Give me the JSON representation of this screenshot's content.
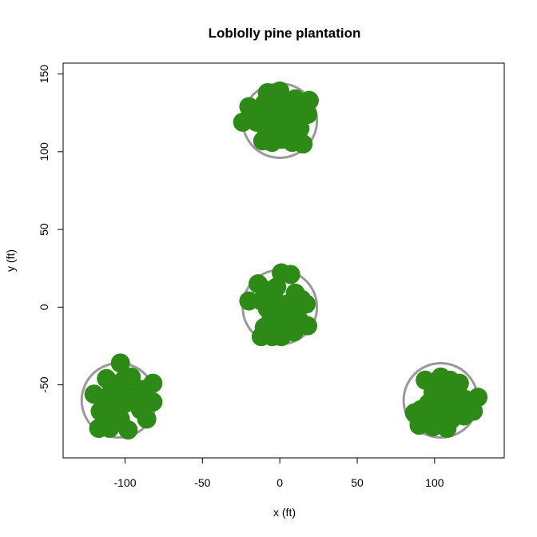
{
  "chart_data": {
    "type": "scatter",
    "title": "Loblolly pine plantation",
    "xlabel": "x (ft)",
    "ylabel": "y (ft)",
    "xlim": [
      -140,
      145
    ],
    "ylim": [
      -97,
      157
    ],
    "x_ticks": [
      -100,
      -50,
      0,
      50,
      100
    ],
    "y_ticks": [
      -50,
      0,
      50,
      100,
      150
    ],
    "x_tick_labels": [
      "-100",
      "-50",
      "0",
      "50",
      "100"
    ],
    "y_tick_labels": [
      "-50",
      "0",
      "50",
      "100",
      "150"
    ],
    "grid": false,
    "legend": "none",
    "colors": {
      "points": "#2d8a17",
      "plot_circles": "#999999"
    },
    "plot_circles": [
      {
        "center": [
          0,
          120
        ],
        "radius": 24
      },
      {
        "center": [
          0,
          0
        ],
        "radius": 24
      },
      {
        "center": [
          -104,
          -60
        ],
        "radius": 24
      },
      {
        "center": [
          104,
          -60
        ],
        "radius": 24
      }
    ],
    "series": [
      {
        "values": [
          [
            -8,
            138
          ],
          [
            0,
            139
          ],
          [
            10,
            134
          ],
          [
            19,
            133
          ],
          [
            -20,
            129
          ],
          [
            -10,
            131
          ],
          [
            -2,
            131
          ],
          [
            5,
            130
          ],
          [
            -12,
            125
          ],
          [
            -5,
            125
          ],
          [
            4,
            124
          ],
          [
            12,
            124
          ],
          [
            18,
            124
          ],
          [
            -15,
            119
          ],
          [
            -4,
            120
          ],
          [
            7,
            118
          ],
          [
            -24,
            119
          ],
          [
            -9,
            115
          ],
          [
            0,
            116
          ],
          [
            13,
            115
          ],
          [
            -3,
            111
          ],
          [
            5,
            112
          ],
          [
            12,
            113
          ],
          [
            -11,
            107
          ],
          [
            -5,
            106
          ],
          [
            1,
            108
          ],
          [
            8,
            106
          ],
          [
            15,
            105
          ],
          [
            0,
            127
          ],
          [
            -7,
            121
          ]
        ]
      },
      {
        "values": [
          [
            1,
            22
          ],
          [
            7,
            21
          ],
          [
            -14,
            15
          ],
          [
            -9,
            11
          ],
          [
            -2,
            13
          ],
          [
            10,
            9
          ],
          [
            -20,
            4
          ],
          [
            -12,
            4
          ],
          [
            -3,
            3
          ],
          [
            5,
            2
          ],
          [
            14,
            5
          ],
          [
            -8,
            -1
          ],
          [
            2,
            -2
          ],
          [
            10,
            -2
          ],
          [
            17,
            2
          ],
          [
            -6,
            -9
          ],
          [
            6,
            -10
          ],
          [
            13,
            -9
          ],
          [
            18,
            -12
          ],
          [
            -10,
            -13
          ],
          [
            0,
            -14
          ],
          [
            9,
            -16
          ],
          [
            -12,
            -19
          ],
          [
            -5,
            -19
          ],
          [
            1,
            -19
          ],
          [
            -1,
            -7
          ],
          [
            7,
            -5
          ],
          [
            -4,
            8
          ]
        ]
      },
      {
        "values": [
          [
            -103,
            -36
          ],
          [
            -96,
            -45
          ],
          [
            -112,
            -46
          ],
          [
            -101,
            -47
          ],
          [
            -82,
            -49
          ],
          [
            -89,
            -53
          ],
          [
            -120,
            -56
          ],
          [
            -109,
            -55
          ],
          [
            -97,
            -57
          ],
          [
            -113,
            -60
          ],
          [
            -100,
            -62
          ],
          [
            -92,
            -62
          ],
          [
            -82,
            -61
          ],
          [
            -116,
            -67
          ],
          [
            -106,
            -67
          ],
          [
            -90,
            -66
          ],
          [
            -113,
            -72
          ],
          [
            -103,
            -72
          ],
          [
            -86,
            -72
          ],
          [
            -117,
            -78
          ],
          [
            -110,
            -78
          ],
          [
            -98,
            -79
          ],
          [
            -104,
            -58
          ]
        ]
      },
      {
        "values": [
          [
            94,
            -47
          ],
          [
            104,
            -45
          ],
          [
            110,
            -47
          ],
          [
            116,
            -49
          ],
          [
            99,
            -55
          ],
          [
            105,
            -55
          ],
          [
            96,
            -62
          ],
          [
            110,
            -59
          ],
          [
            119,
            -59
          ],
          [
            128,
            -58
          ],
          [
            91,
            -66
          ],
          [
            101,
            -68
          ],
          [
            108,
            -69
          ],
          [
            116,
            -67
          ],
          [
            125,
            -67
          ],
          [
            87,
            -68
          ],
          [
            94,
            -72
          ],
          [
            111,
            -72
          ],
          [
            119,
            -70
          ],
          [
            90,
            -76
          ],
          [
            99,
            -77
          ],
          [
            108,
            -78
          ],
          [
            105,
            -63
          ],
          [
            100,
            -72
          ]
        ]
      }
    ]
  }
}
